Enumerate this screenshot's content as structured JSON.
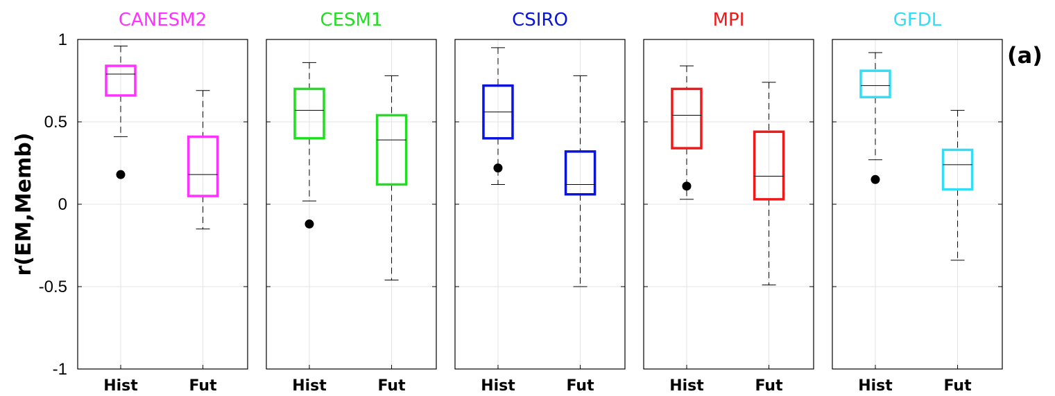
{
  "ylabel": "r(EM,Memb)",
  "panel_label": "(a)",
  "chart_data": {
    "type": "boxplot",
    "ylim": [
      -1,
      1
    ],
    "yticks": [
      "-1",
      "-0.5",
      "0",
      "0.5",
      "1"
    ],
    "categories": [
      "Hist",
      "Fut"
    ],
    "grid": true,
    "panels": [
      {
        "title": "CANESM2",
        "color": "#ff33ff",
        "boxes": [
          {
            "q1": 0.66,
            "median": 0.79,
            "q3": 0.84,
            "whisker_low": 0.41,
            "whisker_high": 0.96,
            "outliers": [
              0.18
            ]
          },
          {
            "q1": 0.05,
            "median": 0.18,
            "q3": 0.41,
            "whisker_low": -0.15,
            "whisker_high": 0.69,
            "outliers": []
          }
        ]
      },
      {
        "title": "CESM1",
        "color": "#22dd22",
        "boxes": [
          {
            "q1": 0.4,
            "median": 0.57,
            "q3": 0.7,
            "whisker_low": 0.02,
            "whisker_high": 0.86,
            "outliers": [
              -0.12
            ]
          },
          {
            "q1": 0.12,
            "median": 0.39,
            "q3": 0.54,
            "whisker_low": -0.46,
            "whisker_high": 0.78,
            "outliers": []
          }
        ]
      },
      {
        "title": "CSIRO",
        "color": "#0a14d8",
        "boxes": [
          {
            "q1": 0.4,
            "median": 0.56,
            "q3": 0.72,
            "whisker_low": 0.12,
            "whisker_high": 0.95,
            "outliers": [
              0.22
            ]
          },
          {
            "q1": 0.06,
            "median": 0.12,
            "q3": 0.32,
            "whisker_low": -0.5,
            "whisker_high": 0.78,
            "outliers": []
          }
        ]
      },
      {
        "title": "MPI",
        "color": "#ee1a1a",
        "boxes": [
          {
            "q1": 0.34,
            "median": 0.54,
            "q3": 0.7,
            "whisker_low": 0.03,
            "whisker_high": 0.84,
            "outliers": [
              0.11
            ]
          },
          {
            "q1": 0.03,
            "median": 0.17,
            "q3": 0.44,
            "whisker_low": -0.49,
            "whisker_high": 0.74,
            "outliers": []
          }
        ]
      },
      {
        "title": "GFDL",
        "color": "#33ddf5",
        "boxes": [
          {
            "q1": 0.65,
            "median": 0.72,
            "q3": 0.81,
            "whisker_low": 0.27,
            "whisker_high": 0.92,
            "outliers": [
              0.15
            ]
          },
          {
            "q1": 0.09,
            "median": 0.24,
            "q3": 0.33,
            "whisker_low": -0.34,
            "whisker_high": 0.57,
            "outliers": []
          }
        ]
      }
    ]
  }
}
